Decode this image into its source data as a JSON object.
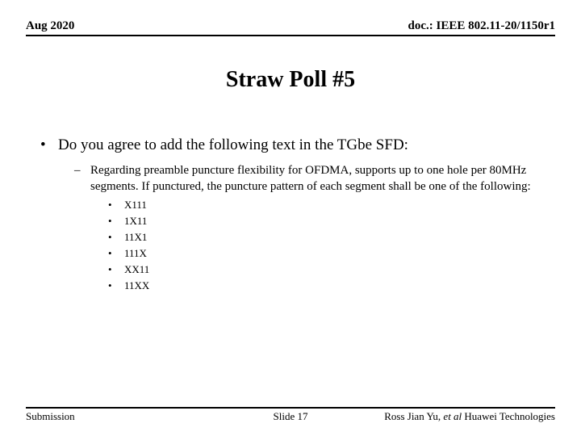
{
  "header": {
    "date": "Aug 2020",
    "doc_ref": "doc.: IEEE 802.11-20/1150r1"
  },
  "title": "Straw Poll #5",
  "content": {
    "question": "Do you agree to add the following text in the TGbe SFD:",
    "detail": "Regarding preamble puncture flexibility for OFDMA, supports up to one hole per 80MHz segments. If punctured, the puncture pattern of each segment shall be one of the following:",
    "patterns": [
      "X111",
      "1X11",
      "11X1",
      "111X",
      "XX11",
      "11XX"
    ]
  },
  "footer": {
    "left": "Submission",
    "center": "Slide 17",
    "right_prefix": "Ross Jian Yu, ",
    "right_italic": "et al",
    "right_suffix": " Huawei Technologies"
  },
  "bullets": {
    "l1": "•",
    "l2": "–",
    "l3": "•"
  }
}
